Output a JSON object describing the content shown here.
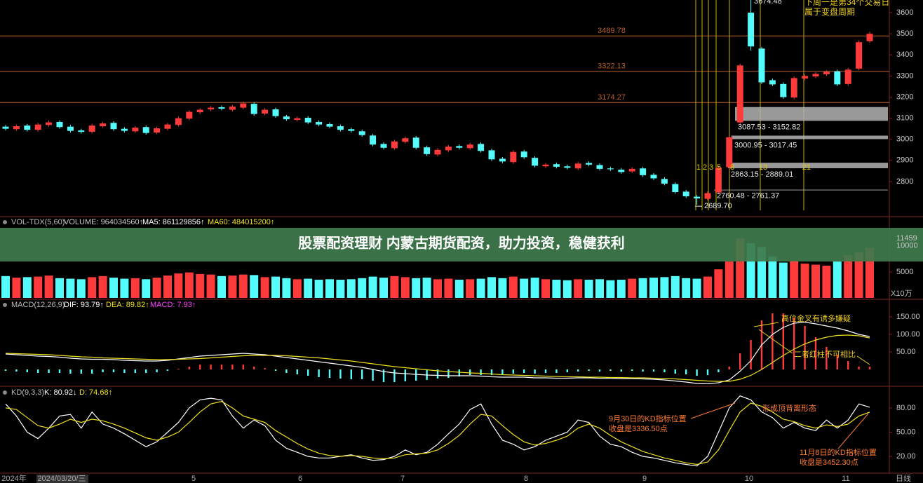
{
  "banner": "股票配资理财 内蒙古期货配资，助力投资，稳健获利",
  "chart_data": [
    {
      "type": "candlestick",
      "x_labels": [
        "2024年",
        "2024/03/20/三",
        "5",
        "6",
        "7",
        "8",
        "9",
        "10",
        "11",
        "日线"
      ],
      "open": [
        3060,
        3048,
        3065,
        3045,
        3068,
        3082,
        3060,
        3042,
        3036,
        3062,
        3078,
        3050,
        3038,
        3058,
        3032,
        3050,
        3068,
        3098,
        3128,
        3142,
        3152,
        3140,
        3150,
        3168,
        3122,
        3142,
        3108,
        3092,
        3102,
        3082,
        3072,
        3062,
        3048,
        3038,
        3018,
        2978,
        2958,
        2988,
        3008,
        2962,
        2928,
        2948,
        2968,
        2958,
        2978,
        2948,
        2908,
        2892,
        2942,
        2912,
        2872,
        2882,
        2872,
        2862,
        2888,
        2878,
        2862,
        2856,
        2848,
        2862,
        2832,
        2812,
        2788,
        2752,
        2728,
        2718,
        2748,
        2868,
        3080,
        3600,
        3430,
        3280,
        3262,
        3198,
        3288,
        3298,
        3308,
        3322,
        3262,
        3335,
        3465
      ],
      "high": [
        3068,
        3070,
        3073,
        3078,
        3090,
        3090,
        3068,
        3050,
        3073,
        3083,
        3086,
        3058,
        3063,
        3066,
        3060,
        3078,
        3108,
        3138,
        3148,
        3158,
        3160,
        3163,
        3178,
        3176,
        3148,
        3150,
        3116,
        3108,
        3110,
        3090,
        3080,
        3070,
        3056,
        3046,
        3026,
        2986,
        2998,
        3013,
        3016,
        2970,
        2958,
        2973,
        2976,
        2983,
        2986,
        2956,
        2916,
        2948,
        2950,
        2920,
        2888,
        2890,
        2880,
        2893,
        2896,
        2886,
        2870,
        2864,
        2868,
        2870,
        2840,
        2820,
        2796,
        2760,
        2736,
        2753,
        2873,
        3018,
        3358,
        3674.48,
        3438,
        3288,
        3270,
        3298,
        3308,
        3318,
        3328,
        3330,
        3338,
        3468,
        3510
      ],
      "low": [
        3042,
        3040,
        3037,
        3037,
        3060,
        3050,
        3032,
        3027,
        3028,
        3054,
        3040,
        3032,
        3030,
        3022,
        3024,
        3042,
        3060,
        3090,
        3120,
        3134,
        3137,
        3132,
        3142,
        3112,
        3114,
        3102,
        3087,
        3084,
        3072,
        3062,
        3052,
        3037,
        3032,
        3012,
        2967,
        2952,
        2950,
        2980,
        2952,
        2922,
        2920,
        2940,
        2952,
        2950,
        2937,
        2897,
        2887,
        2884,
        2907,
        2867,
        2864,
        2862,
        2857,
        2854,
        2872,
        2852,
        2850,
        2837,
        2840,
        2822,
        2807,
        2782,
        2742,
        2722,
        2689.7,
        2710,
        2740,
        2860,
        3072,
        3420,
        3262,
        3252,
        3192,
        3190,
        3280,
        3290,
        3300,
        3252,
        3254,
        3327,
        3457
      ],
      "close": [
        3050,
        3062,
        3045,
        3070,
        3080,
        3058,
        3040,
        3035,
        3065,
        3075,
        3048,
        3040,
        3055,
        3030,
        3052,
        3070,
        3100,
        3130,
        3140,
        3150,
        3145,
        3155,
        3170,
        3120,
        3140,
        3110,
        3095,
        3100,
        3080,
        3070,
        3060,
        3045,
        3040,
        3020,
        2975,
        2960,
        2990,
        3005,
        2960,
        2930,
        2950,
        2965,
        2960,
        2975,
        2945,
        2905,
        2895,
        2940,
        2915,
        2875,
        2880,
        2870,
        2865,
        2885,
        2880,
        2860,
        2858,
        2845,
        2860,
        2830,
        2815,
        2790,
        2750,
        2730,
        2720,
        2745,
        2865,
        3010,
        3350,
        3440,
        3270,
        3260,
        3200,
        3290,
        3300,
        3310,
        3320,
        3260,
        3330,
        3460,
        3500
      ],
      "up_color": "#ff3a3a",
      "down_color": "#54fcfc",
      "ylim": [
        2647,
        3660
      ],
      "yticks": [
        2800,
        2900,
        3000,
        3100,
        3200,
        3300,
        3400,
        3500,
        3600
      ],
      "levels": [
        3489.78,
        3322.13,
        3174.27
      ],
      "level_color": "#b8602f",
      "zones": [
        {
          "low": 3087.53,
          "high": 3152.82,
          "label": "3087.53 - 3152.82"
        },
        {
          "low": 3000.95,
          "high": 3017.45,
          "label": "3000.95 - 3017.45"
        },
        {
          "low": 2863.15,
          "high": 2889.01,
          "label": "2863.15 - 2889.01"
        },
        {
          "low": 2760.48,
          "high": 2761.37,
          "label": "2760.48 - 2761.37"
        }
      ],
      "extremes": [
        {
          "value": 3674.48,
          "label": "3674.48"
        },
        {
          "value": 2689.7,
          "label": "2689.70"
        }
      ],
      "fib_counts": [
        1,
        2,
        3,
        5,
        8,
        13,
        21
      ],
      "annotations": [
        "下周一是第34个交易日",
        "属于变盘周期"
      ]
    },
    {
      "type": "bar",
      "title": "VOL-TDX(5,60)",
      "legend": [
        "VOLUME: 964034560↑",
        "MA5: 861129856↑",
        "MA60: 484015200↑"
      ],
      "legend_colors": [
        "#c8c8c8",
        "#ffffff",
        "#f0e020"
      ],
      "values": [
        4200,
        3900,
        4000,
        4100,
        4300,
        3800,
        3700,
        3600,
        4000,
        4200,
        3900,
        3700,
        3800,
        3600,
        3900,
        4300,
        4700,
        4900,
        4600,
        4500,
        4200,
        4300,
        4500,
        4400,
        4000,
        4100,
        3800,
        3600,
        3700,
        3500,
        3600,
        3500,
        3600,
        3800,
        4100,
        3900,
        4200,
        4000,
        3800,
        3900,
        3600,
        3700,
        3500,
        3600,
        3700,
        4000,
        3800,
        4100,
        3700,
        3900,
        3600,
        3500,
        3400,
        3600,
        3500,
        3600,
        3400,
        3500,
        3700,
        3800,
        3900,
        4000,
        4200,
        3800,
        3700,
        4100,
        5500,
        7000,
        11459,
        10500,
        9800,
        8000,
        6800,
        7200,
        6600,
        6400,
        6200,
        7000,
        8200,
        8800,
        9640
      ],
      "up_color": "#ff3a3a",
      "down_color": "#54fcfc",
      "ylim": [
        0,
        15100
      ],
      "yticks": [
        5000,
        10000,
        11459
      ],
      "unit": "X10万"
    },
    {
      "type": "macd",
      "title": "MACD(12,26,9)",
      "series": [
        {
          "name": "DIF: 93.79↑",
          "color": "#ffffff",
          "values": [
            44,
            42,
            40,
            38,
            37,
            35,
            32,
            30,
            29,
            29,
            28,
            26,
            25,
            24,
            24,
            26,
            30,
            34,
            38,
            40,
            42,
            44,
            46,
            44,
            42,
            38,
            34,
            30,
            26,
            22,
            18,
            14,
            10,
            6,
            0,
            -6,
            -10,
            -12,
            -14,
            -16,
            -17,
            -18,
            -18,
            -18,
            -19,
            -21,
            -22,
            -22,
            -22,
            -24,
            -24,
            -25,
            -25,
            -24,
            -24,
            -25,
            -25,
            -26,
            -26,
            -27,
            -28,
            -30,
            -33,
            -36,
            -40,
            -41,
            -38,
            -30,
            -5,
            25,
            70,
            100,
            120,
            132,
            135,
            130,
            124,
            118,
            110,
            100,
            93.79
          ]
        },
        {
          "name": "DEA: 89.82↑",
          "color": "#f0e020",
          "values": [
            46,
            45,
            44,
            43,
            42,
            40,
            38,
            36,
            35,
            33,
            32,
            31,
            30,
            29,
            28,
            28,
            29,
            30,
            31,
            33,
            35,
            37,
            39,
            40,
            40,
            40,
            39,
            37,
            35,
            33,
            30,
            27,
            24,
            20,
            16,
            12,
            8,
            5,
            2,
            -1,
            -4,
            -6,
            -8,
            -10,
            -11,
            -13,
            -15,
            -16,
            -17,
            -18,
            -19,
            -20,
            -21,
            -21,
            -22,
            -22,
            -23,
            -23,
            -24,
            -24,
            -25,
            -26,
            -27,
            -29,
            -31,
            -33,
            -34,
            -34,
            -28,
            -17,
            0,
            20,
            40,
            58,
            73,
            84,
            92,
            97,
            98,
            96,
            89.82
          ]
        },
        {
          "name": "MACD: 7.93↑",
          "color": "#ff40ff",
          "values": [
            -4,
            -6,
            -8,
            -10,
            -10,
            -10,
            -12,
            -12,
            -12,
            -8,
            -8,
            -10,
            -10,
            -10,
            -8,
            -4,
            2,
            8,
            14,
            14,
            14,
            14,
            14,
            8,
            4,
            -4,
            -10,
            -14,
            -18,
            -22,
            -24,
            -26,
            -28,
            -28,
            -32,
            -36,
            -36,
            -34,
            -32,
            -30,
            -26,
            -24,
            -20,
            -16,
            -16,
            -16,
            -14,
            -12,
            -10,
            -12,
            -10,
            -10,
            -8,
            -6,
            -4,
            -6,
            -4,
            -6,
            -4,
            -6,
            -6,
            -8,
            -12,
            -14,
            -18,
            -16,
            -8,
            8,
            46,
            84,
            140,
            160,
            160,
            148,
            124,
            92,
            64,
            42,
            24,
            8,
            7.93
          ]
        }
      ],
      "up_color": "#ff3a3a",
      "down_color": "#54fcfc",
      "ylim": [
        -46,
        198
      ],
      "yticks": [
        {
          "value": 50,
          "label": "50.00"
        },
        {
          "value": 100,
          "label": "100.00"
        },
        {
          "value": 150,
          "label": "150.00"
        }
      ],
      "annotations": [
        "高位金叉有诱多嫌疑",
        "二者红柱不可相比"
      ]
    },
    {
      "type": "line",
      "title": "KD(9,3,3)",
      "series": [
        {
          "name": "K: 80.92↓",
          "color": "#ffffff",
          "values": [
            85,
            70,
            50,
            42,
            55,
            70,
            72,
            55,
            75,
            60,
            55,
            48,
            40,
            32,
            38,
            50,
            62,
            80,
            90,
            92,
            90,
            70,
            55,
            65,
            58,
            40,
            30,
            25,
            20,
            18,
            18,
            20,
            22,
            18,
            15,
            16,
            20,
            28,
            22,
            25,
            35,
            48,
            60,
            78,
            85,
            60,
            40,
            35,
            28,
            32,
            40,
            45,
            50,
            65,
            62,
            45,
            35,
            32,
            25,
            20,
            18,
            15,
            12,
            10,
            8,
            20,
            50,
            80,
            95,
            90,
            75,
            68,
            55,
            62,
            55,
            52,
            65,
            55,
            65,
            85,
            80.92
          ]
        },
        {
          "name": "D: 74.68↑",
          "color": "#f0e020",
          "values": [
            80,
            78,
            68,
            58,
            55,
            60,
            66,
            62,
            66,
            64,
            60,
            55,
            49,
            43,
            40,
            44,
            50,
            62,
            75,
            85,
            88,
            80,
            70,
            66,
            62,
            52,
            44,
            36,
            29,
            24,
            21,
            20,
            21,
            20,
            18,
            17,
            18,
            22,
            23,
            24,
            28,
            36,
            46,
            60,
            72,
            70,
            58,
            47,
            38,
            34,
            36,
            40,
            45,
            55,
            60,
            55,
            46,
            38,
            32,
            26,
            22,
            18,
            15,
            12,
            10,
            13,
            28,
            52,
            75,
            86,
            82,
            75,
            66,
            63,
            58,
            55,
            59,
            57,
            60,
            70,
            74.68
          ]
        }
      ],
      "ylim": [
        0,
        106
      ],
      "yticks": [
        {
          "value": 20,
          "label": "20.00"
        },
        {
          "value": 50,
          "label": "50.00"
        },
        {
          "value": 80,
          "label": "80.00"
        }
      ],
      "annotations": [
        "9月30日的KD指标位置",
        "收盘是3336.50点",
        "形成顶背离形态",
        "11月8日的KD指标位置",
        "收盘是3452.30点"
      ]
    }
  ]
}
